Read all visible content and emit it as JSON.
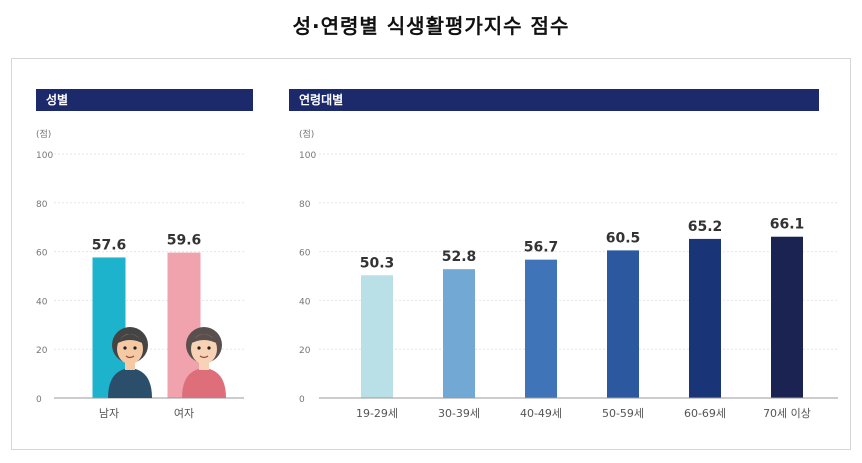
{
  "title": "성·연령별 식생활평가지수 점수",
  "chart_data": [
    {
      "type": "bar",
      "title": "성별",
      "ylabel": "(점)",
      "ylim": [
        0,
        100
      ],
      "yticks": [
        0,
        20,
        40,
        60,
        80,
        100
      ],
      "grid": true,
      "categories": [
        "남자",
        "여자"
      ],
      "values": [
        57.6,
        59.6
      ],
      "data_labels": [
        "57.6",
        "59.6"
      ],
      "colors": [
        "#1db3cc",
        "#f0a3ad"
      ]
    },
    {
      "type": "bar",
      "title": "연령대별",
      "ylabel": "(점)",
      "ylim": [
        0,
        100
      ],
      "yticks": [
        0,
        20,
        40,
        60,
        80,
        100
      ],
      "grid": true,
      "categories": [
        "19-29세",
        "30-39세",
        "40-49세",
        "50-59세",
        "60-69세",
        "70세 이상"
      ],
      "values": [
        50.3,
        52.8,
        56.7,
        60.5,
        65.2,
        66.1
      ],
      "data_labels": [
        "50.3",
        "52.8",
        "56.7",
        "60.5",
        "65.2",
        "66.1"
      ],
      "colors": [
        "#b9e0e6",
        "#72a9d4",
        "#3f74b8",
        "#2c58a0",
        "#1a3478",
        "#1b2353"
      ]
    }
  ]
}
